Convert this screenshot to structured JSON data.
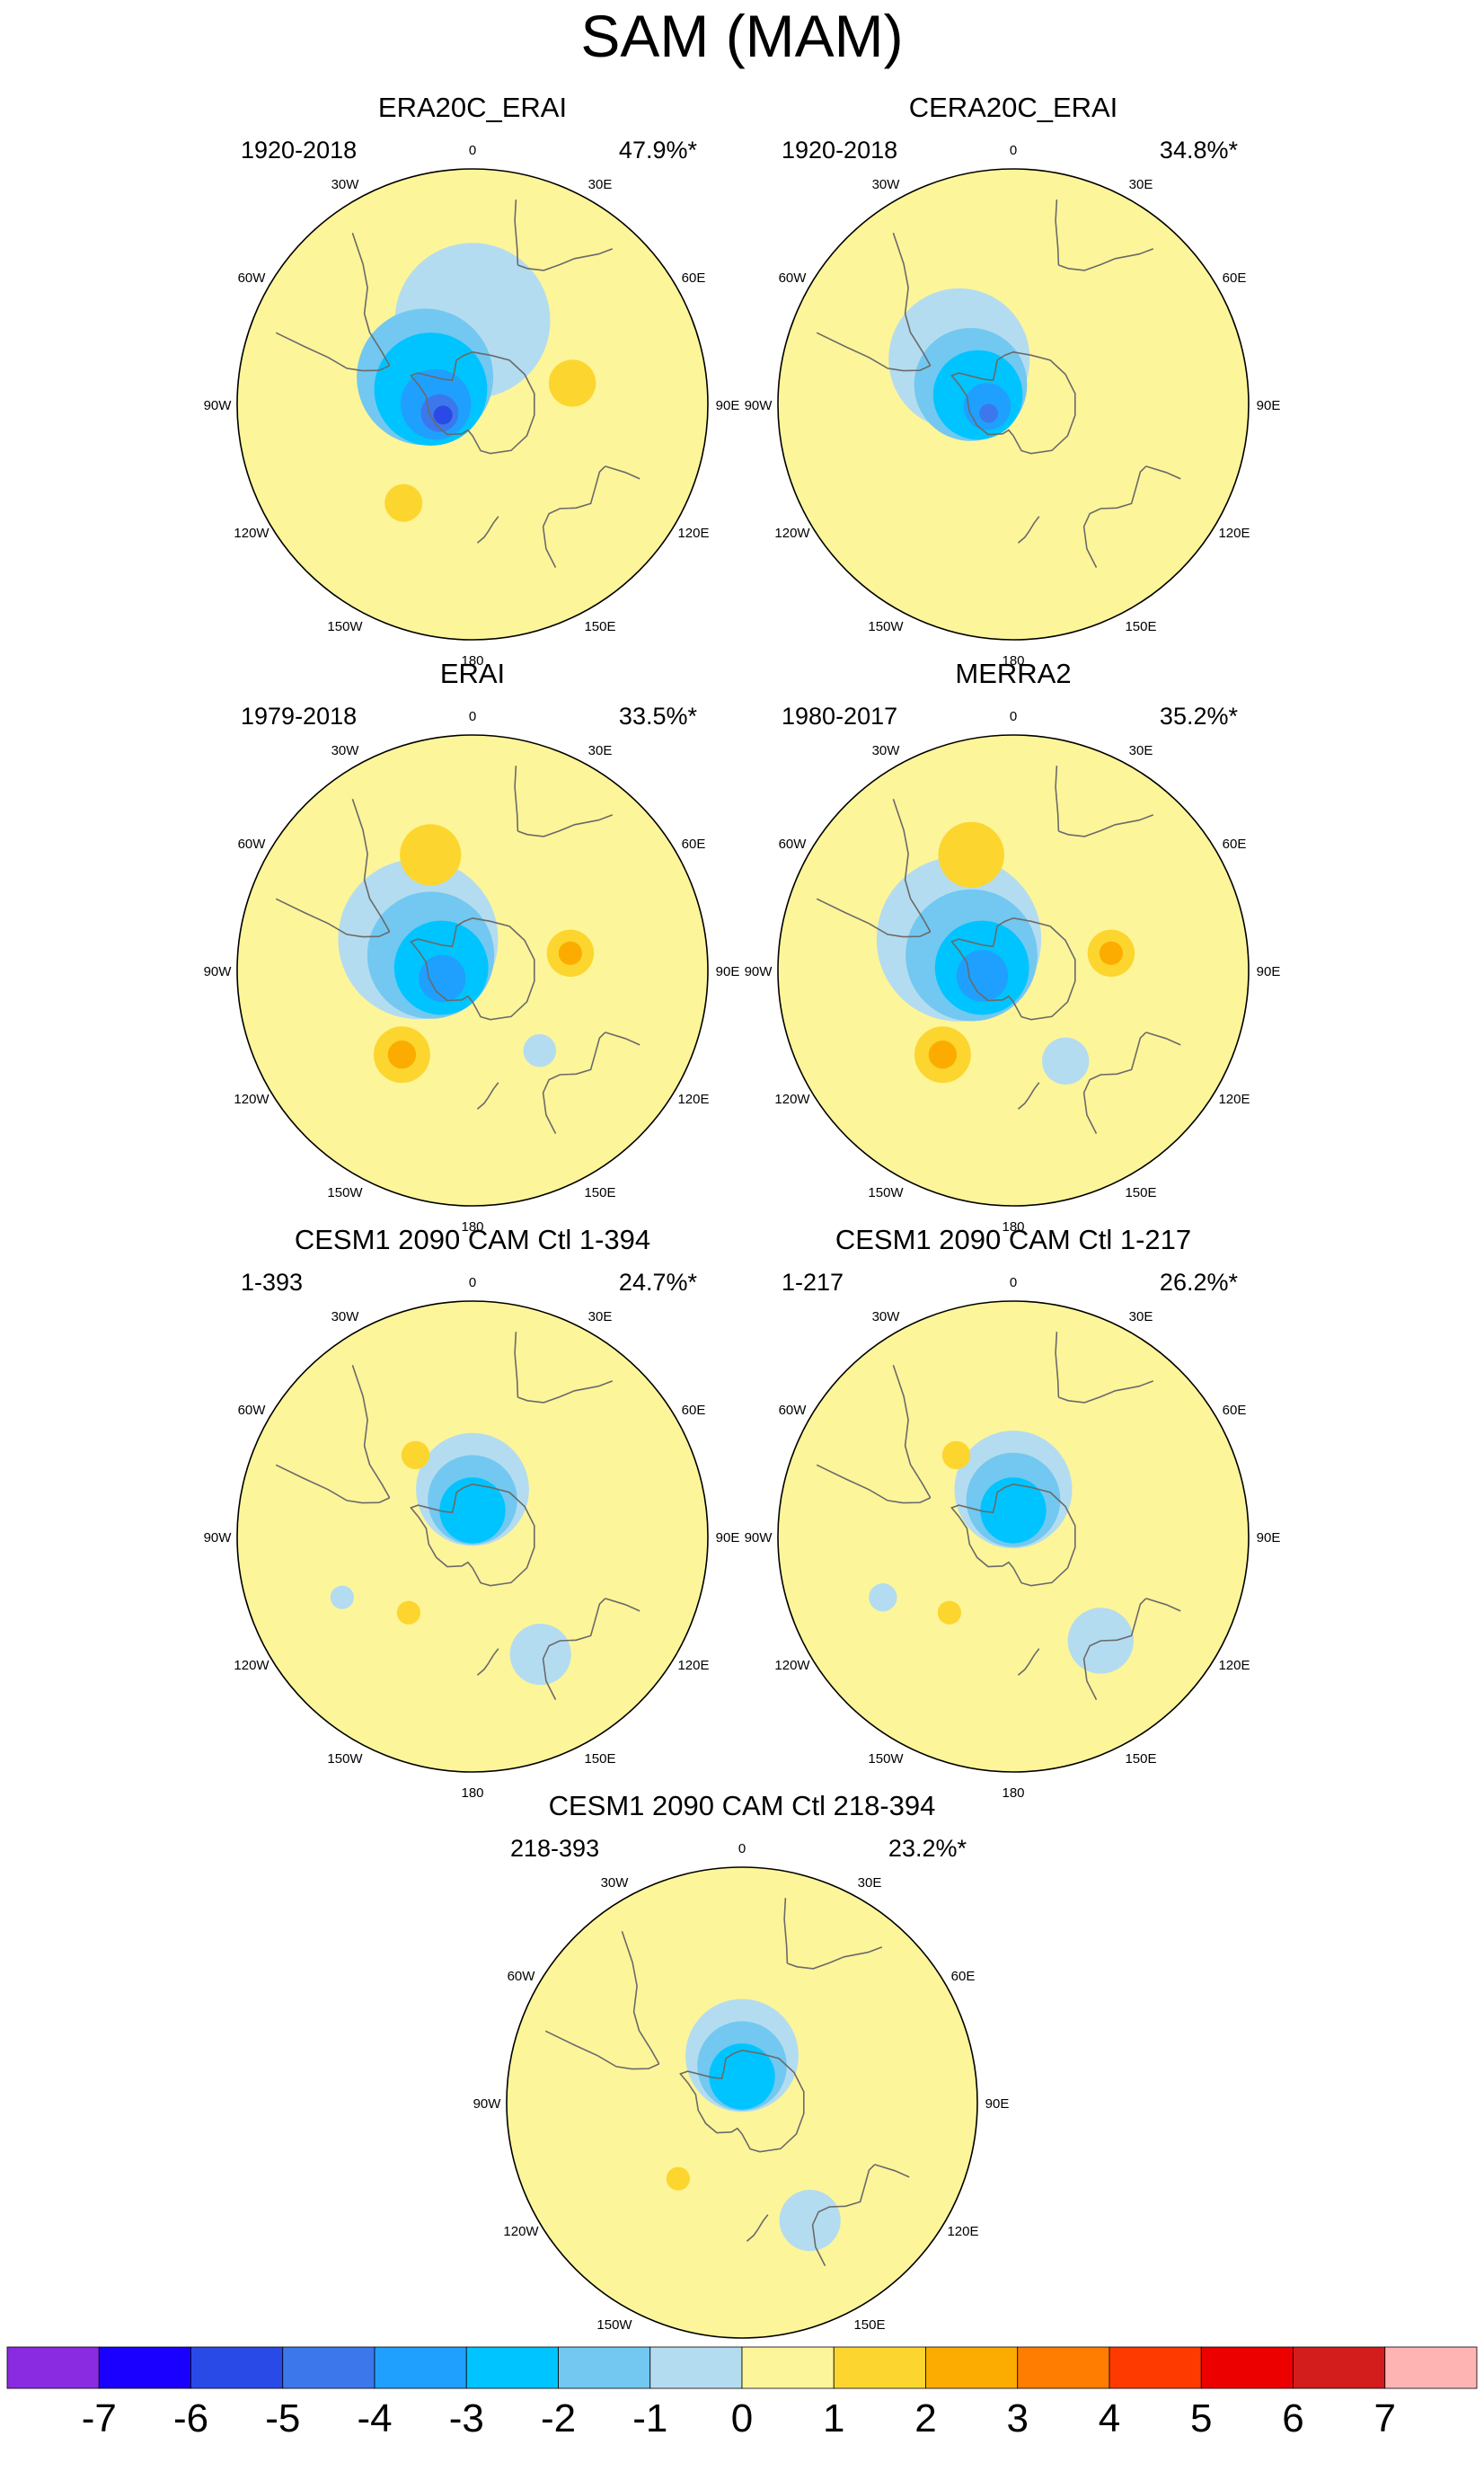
{
  "figure": {
    "title": "SAM (MAM)",
    "panels": [
      {
        "title": "ERA20C_ERAI",
        "period": "1920-2018",
        "variance": "47.9%*",
        "blobs": [
          {
            "lon": 0,
            "lat": -58,
            "r": 0.33,
            "level": -1,
            "aspect": 1.0
          },
          {
            "lon": 300,
            "lat": -69,
            "r": 0.29,
            "level": -2,
            "aspect": 1.0
          },
          {
            "lon": 290,
            "lat": -73,
            "r": 0.24,
            "level": -3,
            "aspect": 1.0
          },
          {
            "lon": 270,
            "lat": -76,
            "r": 0.15,
            "level": -4,
            "aspect": 1.0
          },
          {
            "lon": 255,
            "lat": -77,
            "r": 0.08,
            "level": -5,
            "aspect": 1.0
          },
          {
            "lon": 250,
            "lat": -78,
            "r": 0.04,
            "level": -6,
            "aspect": 1.0
          },
          {
            "lon": 78,
            "lat": -51,
            "r": 0.1,
            "level": 1,
            "aspect": 1.0
          },
          {
            "lon": 215,
            "lat": -44,
            "r": 0.08,
            "level": 1,
            "aspect": 1.0
          }
        ]
      },
      {
        "title": "CERA20C_ERAI",
        "period": "1920-2018",
        "variance": "34.8%*",
        "blobs": [
          {
            "lon": 310,
            "lat": -63,
            "r": 0.3,
            "level": -1,
            "aspect": 1.0
          },
          {
            "lon": 295,
            "lat": -72,
            "r": 0.24,
            "level": -2,
            "aspect": 1.0
          },
          {
            "lon": 285,
            "lat": -76,
            "r": 0.19,
            "level": -3,
            "aspect": 1.0
          },
          {
            "lon": 265,
            "lat": -80,
            "r": 0.1,
            "level": -4,
            "aspect": 1.0
          },
          {
            "lon": 250,
            "lat": -80,
            "r": 0.04,
            "level": -5,
            "aspect": 1.0
          }
        ]
      },
      {
        "title": "ERAI",
        "period": "1979-2018",
        "variance": "33.5%*",
        "blobs": [
          {
            "lon": 300,
            "lat": -66,
            "r": 0.34,
            "level": -1,
            "aspect": 1.0
          },
          {
            "lon": 290,
            "lat": -73,
            "r": 0.27,
            "level": -2,
            "aspect": 1.0
          },
          {
            "lon": 275,
            "lat": -78,
            "r": 0.2,
            "level": -3,
            "aspect": 1.0
          },
          {
            "lon": 255,
            "lat": -78,
            "r": 0.1,
            "level": -4,
            "aspect": 1.0
          },
          {
            "lon": 340,
            "lat": -43,
            "r": 0.13,
            "level": 1,
            "aspect": 1.0
          },
          {
            "lon": 80,
            "lat": -52,
            "r": 0.1,
            "level": 1,
            "aspect": 1.0
          },
          {
            "lon": 80,
            "lat": -52,
            "r": 0.05,
            "level": 2,
            "aspect": 1.0
          },
          {
            "lon": 220,
            "lat": -48,
            "r": 0.12,
            "level": 1,
            "aspect": 1.0
          },
          {
            "lon": 220,
            "lat": -48,
            "r": 0.06,
            "level": 2,
            "aspect": 1.0
          },
          {
            "lon": 140,
            "lat": -50,
            "r": 0.07,
            "level": -1,
            "aspect": 1.0
          }
        ]
      },
      {
        "title": "MERRA2",
        "period": "1980-2017",
        "variance": "35.2%*",
        "blobs": [
          {
            "lon": 300,
            "lat": -66,
            "r": 0.35,
            "level": -1,
            "aspect": 1.0
          },
          {
            "lon": 290,
            "lat": -73,
            "r": 0.28,
            "level": -2,
            "aspect": 1.0
          },
          {
            "lon": 275,
            "lat": -78,
            "r": 0.2,
            "level": -3,
            "aspect": 1.0
          },
          {
            "lon": 260,
            "lat": -78,
            "r": 0.11,
            "level": -4,
            "aspect": 1.0
          },
          {
            "lon": 340,
            "lat": -43,
            "r": 0.14,
            "level": 1,
            "aspect": 1.0
          },
          {
            "lon": 80,
            "lat": -52,
            "r": 0.1,
            "level": 1,
            "aspect": 1.0
          },
          {
            "lon": 80,
            "lat": -52,
            "r": 0.05,
            "level": 2,
            "aspect": 1.0
          },
          {
            "lon": 220,
            "lat": -48,
            "r": 0.12,
            "level": 1,
            "aspect": 1.0
          },
          {
            "lon": 220,
            "lat": -48,
            "r": 0.06,
            "level": 2,
            "aspect": 1.0
          },
          {
            "lon": 150,
            "lat": -50,
            "r": 0.1,
            "level": -1,
            "aspect": 1.0
          }
        ]
      },
      {
        "title": "CESM1 2090 CAM Ctl 1-394",
        "period": "1-393",
        "variance": "24.7%*",
        "blobs": [
          {
            "lon": 0,
            "lat": -72,
            "r": 0.24,
            "level": -1,
            "aspect": 1.0
          },
          {
            "lon": 0,
            "lat": -76,
            "r": 0.19,
            "level": -2,
            "aspect": 1.0
          },
          {
            "lon": 0,
            "lat": -80,
            "r": 0.14,
            "level": -3,
            "aspect": 1.0
          },
          {
            "lon": 325,
            "lat": -52,
            "r": 0.06,
            "level": 1,
            "aspect": 1.0
          },
          {
            "lon": 220,
            "lat": -52,
            "r": 0.05,
            "level": 1,
            "aspect": 1.0
          },
          {
            "lon": 245,
            "lat": -35,
            "r": 0.05,
            "level": -1,
            "aspect": 1.0
          },
          {
            "lon": 150,
            "lat": -38,
            "r": 0.13,
            "level": -1,
            "aspect": 1.0
          }
        ]
      },
      {
        "title": "CESM1 2090 CAM Ctl 1-217",
        "period": "1-217",
        "variance": "26.2%*",
        "blobs": [
          {
            "lon": 0,
            "lat": -72,
            "r": 0.25,
            "level": -1,
            "aspect": 1.0
          },
          {
            "lon": 0,
            "lat": -76,
            "r": 0.2,
            "level": -2,
            "aspect": 1.0
          },
          {
            "lon": 0,
            "lat": -80,
            "r": 0.14,
            "level": -3,
            "aspect": 1.0
          },
          {
            "lon": 325,
            "lat": -52,
            "r": 0.06,
            "level": 1,
            "aspect": 1.0
          },
          {
            "lon": 220,
            "lat": -52,
            "r": 0.05,
            "level": 1,
            "aspect": 1.0
          },
          {
            "lon": 245,
            "lat": -35,
            "r": 0.06,
            "level": -1,
            "aspect": 1.0
          },
          {
            "lon": 140,
            "lat": -38,
            "r": 0.14,
            "level": -1,
            "aspect": 1.0
          }
        ]
      },
      {
        "title": "CESM1 2090 CAM Ctl 218-394",
        "period": "218-393",
        "variance": "23.2%*",
        "blobs": [
          {
            "lon": 0,
            "lat": -72,
            "r": 0.24,
            "level": -1,
            "aspect": 1.0
          },
          {
            "lon": 0,
            "lat": -76,
            "r": 0.19,
            "level": -2,
            "aspect": 1.0
          },
          {
            "lon": 0,
            "lat": -80,
            "r": 0.14,
            "level": -3,
            "aspect": 1.0
          },
          {
            "lon": 220,
            "lat": -52,
            "r": 0.05,
            "level": 1,
            "aspect": 1.0
          },
          {
            "lon": 150,
            "lat": -38,
            "r": 0.13,
            "level": -1,
            "aspect": 1.0
          }
        ]
      }
    ],
    "lon_labels": [
      {
        "deg": 0,
        "text": "0"
      },
      {
        "deg": 30,
        "text": "30E"
      },
      {
        "deg": 60,
        "text": "60E"
      },
      {
        "deg": 90,
        "text": "90E"
      },
      {
        "deg": 120,
        "text": "120E"
      },
      {
        "deg": 150,
        "text": "150E"
      },
      {
        "deg": 180,
        "text": "180"
      },
      {
        "deg": 210,
        "text": "150W"
      },
      {
        "deg": 240,
        "text": "120W"
      },
      {
        "deg": 270,
        "text": "90W"
      },
      {
        "deg": 300,
        "text": "60W"
      },
      {
        "deg": 330,
        "text": "30W"
      }
    ],
    "colorbar": {
      "colors": [
        "#8a2be2",
        "#1a00ff",
        "#2a4ae8",
        "#3c78ec",
        "#1fa0ff",
        "#00c4ff",
        "#72c8f0",
        "#b4dcf0",
        "#fdf59a",
        "#fcd62e",
        "#fcac00",
        "#ff7d00",
        "#ff3a00",
        "#ec0000",
        "#d31c1c",
        "#ffb4b4"
      ],
      "labels": [
        "-7",
        "-6",
        "-5",
        "-4",
        "-3",
        "-2",
        "-1",
        "0",
        "1",
        "2",
        "3",
        "4",
        "5",
        "6",
        "7"
      ]
    }
  }
}
